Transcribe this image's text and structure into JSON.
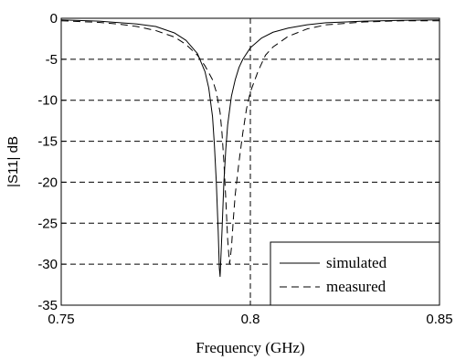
{
  "chart_data": {
    "type": "line",
    "title": "",
    "xlabel": "Frequency (GHz)",
    "ylabel": "|S11| dB",
    "xlim": [
      0.75,
      0.85
    ],
    "ylim": [
      -35,
      0
    ],
    "x_ticks": [
      "0.75",
      "0.8",
      "0.85"
    ],
    "y_ticks": [
      "0",
      "-5",
      "-10",
      "-15",
      "-20",
      "-25",
      "-30",
      "-35"
    ],
    "x_tick_values": [
      0.75,
      0.8,
      0.85
    ],
    "y_tick_values": [
      0,
      -5,
      -10,
      -15,
      -20,
      -25,
      -30,
      -35
    ],
    "grid": {
      "horizontal": true,
      "vertical": true,
      "style": "dashed"
    },
    "legend": {
      "position": "bottom-right"
    },
    "series": [
      {
        "name": "simulated",
        "style": "solid",
        "color": "#000000",
        "x": [
          0.75,
          0.76,
          0.77,
          0.775,
          0.78,
          0.783,
          0.786,
          0.788,
          0.789,
          0.79,
          0.7905,
          0.791,
          0.7915,
          0.7918,
          0.792,
          0.7925,
          0.793,
          0.7935,
          0.794,
          0.795,
          0.796,
          0.797,
          0.798,
          0.8,
          0.803,
          0.806,
          0.81,
          0.815,
          0.82,
          0.83,
          0.84,
          0.85
        ],
        "y": [
          -0.2,
          -0.35,
          -0.7,
          -1.0,
          -1.8,
          -2.7,
          -4.3,
          -6.5,
          -8.5,
          -12.0,
          -15.5,
          -20.0,
          -26.0,
          -30.5,
          -31.5,
          -26.0,
          -20.0,
          -16.0,
          -13.0,
          -9.5,
          -7.5,
          -6.0,
          -5.0,
          -3.6,
          -2.4,
          -1.7,
          -1.2,
          -0.8,
          -0.55,
          -0.35,
          -0.25,
          -0.2
        ]
      },
      {
        "name": "measured",
        "style": "dashed",
        "color": "#000000",
        "x": [
          0.75,
          0.76,
          0.765,
          0.77,
          0.775,
          0.78,
          0.783,
          0.786,
          0.788,
          0.79,
          0.791,
          0.792,
          0.7925,
          0.793,
          0.7935,
          0.794,
          0.7945,
          0.795,
          0.7955,
          0.796,
          0.797,
          0.798,
          0.799,
          0.8,
          0.802,
          0.804,
          0.806,
          0.81,
          0.815,
          0.82,
          0.83,
          0.84,
          0.85
        ],
        "y": [
          -0.3,
          -0.5,
          -0.7,
          -1.0,
          -1.5,
          -2.3,
          -3.2,
          -4.5,
          -5.8,
          -7.5,
          -9.0,
          -11.5,
          -14.0,
          -17.5,
          -22.0,
          -27.0,
          -30.0,
          -28.0,
          -24.5,
          -21.5,
          -17.5,
          -14.0,
          -11.0,
          -9.0,
          -6.5,
          -4.5,
          -3.5,
          -2.2,
          -1.3,
          -0.8,
          -0.45,
          -0.3,
          -0.3
        ]
      }
    ]
  }
}
